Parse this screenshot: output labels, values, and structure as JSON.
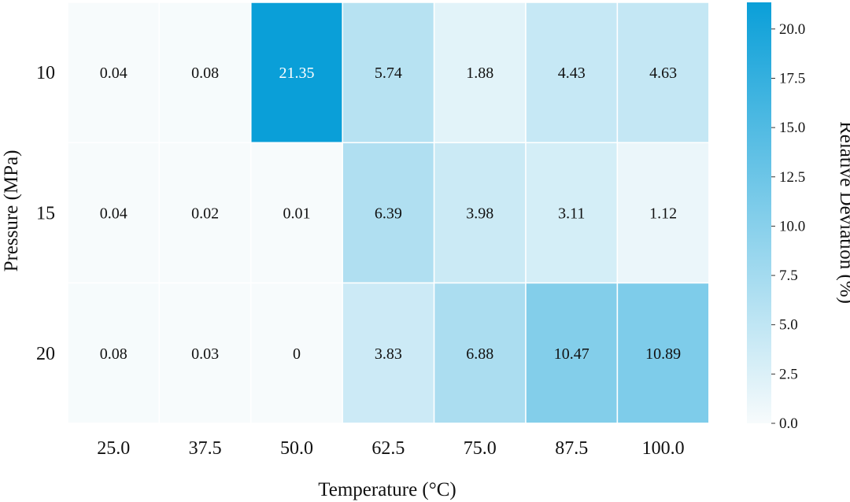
{
  "chart_data": {
    "type": "heatmap",
    "title": "",
    "xlabel": "Temperature (°C)",
    "ylabel": "Pressure (MPa)",
    "x_categories": [
      "25.0",
      "37.5",
      "50.0",
      "62.5",
      "75.0",
      "87.5",
      "100.0"
    ],
    "y_categories": [
      "10",
      "15",
      "20"
    ],
    "values": [
      [
        0.04,
        0.08,
        21.35,
        5.74,
        1.88,
        4.43,
        4.63
      ],
      [
        0.04,
        0.02,
        0.01,
        6.39,
        3.98,
        3.11,
        1.12
      ],
      [
        0.08,
        0.03,
        0,
        3.83,
        6.88,
        10.47,
        10.89
      ]
    ],
    "value_labels": [
      [
        "0.04",
        "0.08",
        "21.35",
        "5.74",
        "1.88",
        "4.43",
        "4.63"
      ],
      [
        "0.04",
        "0.02",
        "0.01",
        "6.39",
        "3.98",
        "3.11",
        "1.12"
      ],
      [
        "0.08",
        "0.03",
        "0",
        "3.83",
        "6.88",
        "10.47",
        "10.89"
      ]
    ],
    "colorbar": {
      "label": "Relative Deviation (%)",
      "range": [
        0,
        21.35
      ],
      "ticks": [
        0.0,
        2.5,
        5.0,
        7.5,
        10.0,
        12.5,
        15.0,
        17.5,
        20.0
      ],
      "tick_labels": [
        "0.0",
        "2.5",
        "5.0",
        "7.5",
        "10.0",
        "12.5",
        "15.0",
        "17.5",
        "20.0"
      ],
      "color_low": "#f7fbfc",
      "color_high": "#0a9fd8"
    },
    "grid": false
  }
}
